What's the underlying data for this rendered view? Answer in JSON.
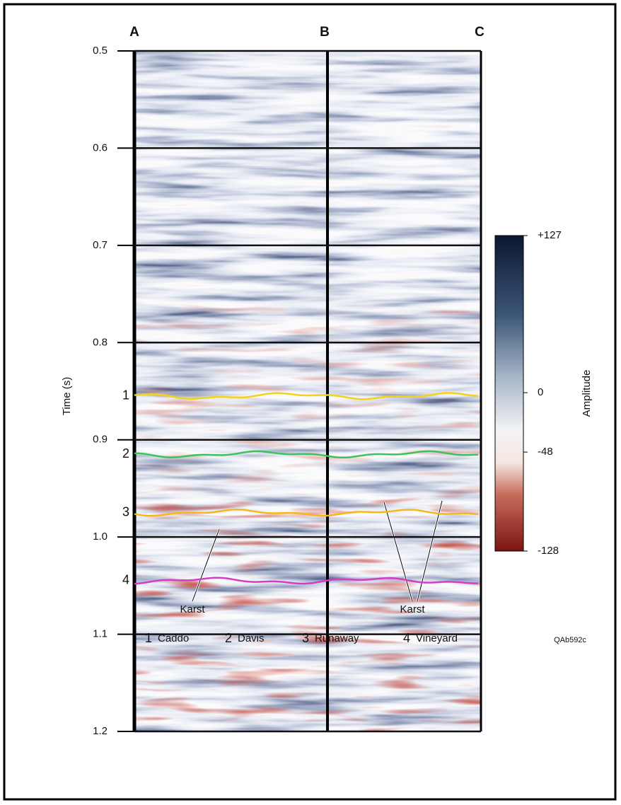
{
  "chart_data": {
    "type": "seismic-section",
    "y_label": "Time (s)",
    "ylim": [
      0.5,
      1.2
    ],
    "yticks": [
      0.5,
      0.6,
      0.7,
      0.8,
      0.9,
      {
        "value": 1,
        "label": "1.0"
      },
      1.1,
      1.2
    ],
    "grid": true,
    "well_labels": [
      "A",
      "B",
      "C"
    ],
    "colorbar": {
      "label": "Amplitude",
      "clim": [
        -128,
        127
      ],
      "ticks": [
        {
          "value": 127,
          "label": "+127"
        },
        0,
        -48,
        -128
      ]
    },
    "horizons": [
      {
        "number": "1",
        "name": "Caddo",
        "time": 0.855,
        "color": "#f2d21b"
      },
      {
        "number": "2",
        "name": "Davis",
        "time": 0.915,
        "color": "#3cc45a"
      },
      {
        "number": "3",
        "name": "Runaway",
        "time": 0.975,
        "color": "#f5b81c"
      },
      {
        "number": "4",
        "name": "Vineyard",
        "time": 1.045,
        "color": "#d23cc8"
      }
    ],
    "annotations": [
      "Karst",
      "Karst"
    ],
    "figure_code": "QAb592c"
  }
}
